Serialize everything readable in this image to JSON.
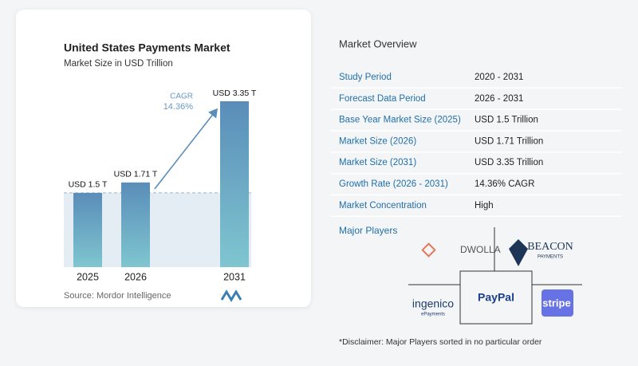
{
  "chart_data": {
    "type": "bar",
    "title": "United States Payments Market",
    "subtitle": "Market Size in USD Trillion",
    "categories": [
      "2025",
      "2026",
      "2031"
    ],
    "values": [
      1.5,
      1.71,
      3.35
    ],
    "value_labels": [
      "USD 1.5 T",
      "USD 1.71 T",
      "USD 3.35 T"
    ],
    "annotation": {
      "label": "CAGR",
      "value": "14.36%"
    },
    "source": "Source: Mordor Intelligence"
  },
  "overview": {
    "title": "Market Overview",
    "rows": [
      [
        "Study Period",
        "2020 - 2031"
      ],
      [
        "Forecast Data Period",
        "2026 - 2031"
      ],
      [
        "Base Year Market Size (2025)",
        "USD 1.5 Trillion"
      ],
      [
        "Market Size (2026)",
        "USD 1.71 Trillion"
      ],
      [
        "Market Size (2031)",
        "USD 3.35 Trillion"
      ],
      [
        "Growth Rate (2026 - 2031)",
        "14.36% CAGR"
      ],
      [
        "Market Concentration",
        "High"
      ]
    ]
  },
  "major_players": {
    "title": "Major Players",
    "logos": [
      {
        "name": "DWOLLA"
      },
      {
        "name": "BEACON",
        "tagline": "PAYMENTS"
      },
      {
        "name": "ingenico",
        "tagline": "ePayments"
      },
      {
        "name": "PayPal"
      },
      {
        "name": "stripe"
      }
    ]
  },
  "disclaimer": "*Disclaimer: Major Players sorted in no particular order"
}
